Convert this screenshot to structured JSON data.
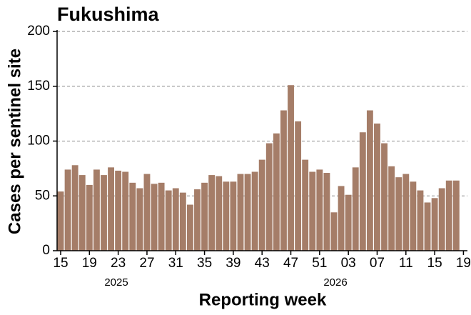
{
  "chart_data": {
    "type": "bar",
    "title": "Fukushima",
    "x_label": "Reporting week",
    "y_label": "Cases per sentinel site",
    "year_labels": [
      "2025",
      "2026"
    ],
    "categories": [
      "15",
      null,
      null,
      null,
      "19",
      null,
      null,
      null,
      "23",
      null,
      null,
      null,
      "27",
      null,
      null,
      null,
      "31",
      null,
      null,
      null,
      "35",
      null,
      null,
      null,
      "39",
      null,
      null,
      null,
      "43",
      null,
      null,
      null,
      "47",
      null,
      null,
      null,
      "51",
      null,
      null,
      null,
      "03",
      null,
      null,
      null,
      "07",
      null,
      null,
      null,
      "11",
      null,
      null,
      null,
      "15",
      null,
      null,
      null,
      "19"
    ],
    "values": [
      54,
      74,
      78,
      69,
      60,
      74,
      69,
      76,
      73,
      72,
      62,
      57,
      70,
      61,
      62,
      55,
      57,
      53,
      42,
      56,
      62,
      69,
      68,
      63,
      63,
      70,
      70,
      72,
      83,
      98,
      107,
      128,
      151,
      118,
      83,
      72,
      74,
      71,
      35,
      59,
      51,
      76,
      108,
      128,
      116,
      98,
      77,
      67,
      70,
      63,
      55,
      44,
      48,
      57,
      64,
      64,
      null
    ],
    "color": "#a57d68",
    "ylim": [
      0,
      200
    ],
    "yticks": [
      0,
      50,
      100,
      150,
      200
    ],
    "grid": true
  }
}
